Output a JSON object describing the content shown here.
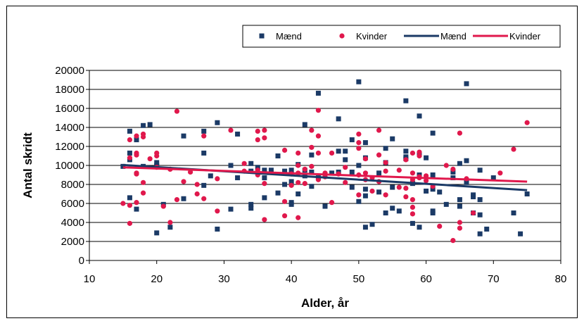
{
  "chart_data": {
    "type": "scatter",
    "xlabel": "Alder, år",
    "ylabel": "Antal skridt",
    "xlim": [
      10,
      80
    ],
    "ylim": [
      0,
      20000
    ],
    "xticks": [
      10,
      20,
      30,
      40,
      50,
      60,
      70,
      80
    ],
    "yticks": [
      0,
      2000,
      4000,
      6000,
      8000,
      10000,
      12000,
      14000,
      16000,
      18000,
      20000
    ],
    "grid": "horizontal",
    "legend_position": "top-right",
    "colors": {
      "maend": "#1b3a66",
      "kvinder": "#e0184c"
    },
    "series": [
      {
        "name": "Mænd",
        "kind": "points",
        "points": [
          [
            15,
            9900
          ],
          [
            16,
            13600
          ],
          [
            16,
            11300
          ],
          [
            16,
            10600
          ],
          [
            16,
            6600
          ],
          [
            17,
            12700
          ],
          [
            17,
            5400
          ],
          [
            18,
            14200
          ],
          [
            18,
            9900
          ],
          [
            19,
            14300
          ],
          [
            20,
            10300
          ],
          [
            20,
            10000
          ],
          [
            20,
            2900
          ],
          [
            21,
            5900
          ],
          [
            22,
            3500
          ],
          [
            24,
            13100
          ],
          [
            24,
            6500
          ],
          [
            27,
            13600
          ],
          [
            27,
            11300
          ],
          [
            27,
            7900
          ],
          [
            28,
            8900
          ],
          [
            29,
            14500
          ],
          [
            29,
            3300
          ],
          [
            31,
            10000
          ],
          [
            31,
            5400
          ],
          [
            32,
            13300
          ],
          [
            32,
            8700
          ],
          [
            34,
            10200
          ],
          [
            34,
            9400
          ],
          [
            34,
            5900
          ],
          [
            34,
            5500
          ],
          [
            35,
            9800
          ],
          [
            36,
            9500
          ],
          [
            36,
            8700
          ],
          [
            36,
            6600
          ],
          [
            37,
            9500
          ],
          [
            38,
            11000
          ],
          [
            38,
            7100
          ],
          [
            39,
            9400
          ],
          [
            39,
            8000
          ],
          [
            40,
            9500
          ],
          [
            40,
            8300
          ],
          [
            40,
            6100
          ],
          [
            40,
            5900
          ],
          [
            41,
            10100
          ],
          [
            41,
            7000
          ],
          [
            42,
            14300
          ],
          [
            42,
            9500
          ],
          [
            42,
            8900
          ],
          [
            43,
            11100
          ],
          [
            43,
            9300
          ],
          [
            43,
            7800
          ],
          [
            44,
            17600
          ],
          [
            44,
            8700
          ],
          [
            45,
            5700
          ],
          [
            46,
            9200
          ],
          [
            47,
            14900
          ],
          [
            47,
            11500
          ],
          [
            47,
            9300
          ],
          [
            48,
            11500
          ],
          [
            48,
            10600
          ],
          [
            49,
            12700
          ],
          [
            49,
            9300
          ],
          [
            49,
            7700
          ],
          [
            50,
            18800
          ],
          [
            50,
            10000
          ],
          [
            50,
            6200
          ],
          [
            51,
            12400
          ],
          [
            51,
            10800
          ],
          [
            51,
            7500
          ],
          [
            51,
            6800
          ],
          [
            51,
            3500
          ],
          [
            52,
            3800
          ],
          [
            53,
            9200
          ],
          [
            53,
            7200
          ],
          [
            54,
            11800
          ],
          [
            54,
            10300
          ],
          [
            54,
            5000
          ],
          [
            55,
            12800
          ],
          [
            55,
            7700
          ],
          [
            55,
            5500
          ],
          [
            56,
            5200
          ],
          [
            57,
            16800
          ],
          [
            57,
            11500
          ],
          [
            57,
            10900
          ],
          [
            57,
            10700
          ],
          [
            58,
            8100
          ],
          [
            58,
            3900
          ],
          [
            59,
            15200
          ],
          [
            59,
            11200
          ],
          [
            59,
            9000
          ],
          [
            59,
            3500
          ],
          [
            60,
            10800
          ],
          [
            60,
            7300
          ],
          [
            61,
            13400
          ],
          [
            61,
            9000
          ],
          [
            61,
            7500
          ],
          [
            61,
            5200
          ],
          [
            61,
            5000
          ],
          [
            62,
            7200
          ],
          [
            63,
            5900
          ],
          [
            64,
            9300
          ],
          [
            64,
            8700
          ],
          [
            65,
            10200
          ],
          [
            65,
            6400
          ],
          [
            65,
            5700
          ],
          [
            66,
            18600
          ],
          [
            66,
            10500
          ],
          [
            66,
            8200
          ],
          [
            67,
            6900
          ],
          [
            67,
            6700
          ],
          [
            67,
            5000
          ],
          [
            68,
            9500
          ],
          [
            68,
            6400
          ],
          [
            68,
            4800
          ],
          [
            68,
            2800
          ],
          [
            69,
            3300
          ],
          [
            70,
            8700
          ],
          [
            73,
            5000
          ],
          [
            74,
            2800
          ],
          [
            75,
            7000
          ]
        ]
      },
      {
        "name": "Kvinder",
        "kind": "points",
        "points": [
          [
            15,
            6000
          ],
          [
            16,
            12700
          ],
          [
            16,
            10800
          ],
          [
            16,
            5800
          ],
          [
            16,
            3900
          ],
          [
            17,
            13100
          ],
          [
            17,
            11300
          ],
          [
            17,
            11100
          ],
          [
            17,
            9200
          ],
          [
            17,
            9100
          ],
          [
            17,
            6100
          ],
          [
            18,
            13300
          ],
          [
            18,
            13000
          ],
          [
            18,
            8200
          ],
          [
            18,
            7100
          ],
          [
            19,
            10700
          ],
          [
            20,
            11300
          ],
          [
            20,
            11000
          ],
          [
            20,
            9800
          ],
          [
            21,
            5700
          ],
          [
            22,
            4000
          ],
          [
            22,
            9600
          ],
          [
            23,
            15700
          ],
          [
            23,
            6400
          ],
          [
            24,
            8300
          ],
          [
            25,
            9300
          ],
          [
            26,
            8000
          ],
          [
            26,
            7000
          ],
          [
            27,
            13100
          ],
          [
            27,
            6500
          ],
          [
            29,
            8600
          ],
          [
            29,
            5200
          ],
          [
            31,
            13700
          ],
          [
            33,
            10200
          ],
          [
            33,
            9400
          ],
          [
            35,
            13600
          ],
          [
            35,
            12700
          ],
          [
            35,
            9500
          ],
          [
            35,
            9000
          ],
          [
            36,
            13700
          ],
          [
            36,
            12900
          ],
          [
            36,
            8100
          ],
          [
            36,
            4300
          ],
          [
            39,
            11600
          ],
          [
            39,
            6200
          ],
          [
            39,
            4700
          ],
          [
            40,
            9100
          ],
          [
            40,
            7900
          ],
          [
            41,
            11300
          ],
          [
            41,
            10000
          ],
          [
            41,
            9200
          ],
          [
            41,
            8200
          ],
          [
            41,
            4500
          ],
          [
            42,
            9600
          ],
          [
            42,
            8100
          ],
          [
            43,
            13700
          ],
          [
            43,
            11900
          ],
          [
            43,
            9900
          ],
          [
            44,
            15800
          ],
          [
            44,
            13100
          ],
          [
            44,
            11300
          ],
          [
            44,
            8500
          ],
          [
            45,
            9200
          ],
          [
            45,
            8800
          ],
          [
            46,
            11300
          ],
          [
            46,
            6100
          ],
          [
            47,
            9100
          ],
          [
            48,
            9800
          ],
          [
            48,
            8200
          ],
          [
            50,
            13300
          ],
          [
            50,
            12400
          ],
          [
            50,
            11800
          ],
          [
            50,
            9000
          ],
          [
            50,
            6900
          ],
          [
            51,
            10700
          ],
          [
            51,
            9200
          ],
          [
            51,
            8500
          ],
          [
            52,
            8700
          ],
          [
            52,
            7300
          ],
          [
            53,
            13700
          ],
          [
            53,
            11100
          ],
          [
            53,
            8300
          ],
          [
            54,
            10300
          ],
          [
            54,
            9400
          ],
          [
            54,
            6900
          ],
          [
            56,
            9500
          ],
          [
            56,
            7700
          ],
          [
            57,
            10600
          ],
          [
            57,
            7600
          ],
          [
            57,
            6700
          ],
          [
            58,
            11300
          ],
          [
            58,
            9200
          ],
          [
            58,
            8500
          ],
          [
            58,
            6400
          ],
          [
            58,
            5600
          ],
          [
            58,
            4900
          ],
          [
            59,
            11400
          ],
          [
            59,
            11000
          ],
          [
            59,
            8800
          ],
          [
            59,
            8700
          ],
          [
            60,
            8900
          ],
          [
            60,
            8400
          ],
          [
            61,
            7800
          ],
          [
            62,
            3600
          ],
          [
            63,
            10000
          ],
          [
            64,
            9600
          ],
          [
            64,
            2100
          ],
          [
            65,
            13400
          ],
          [
            65,
            4000
          ],
          [
            65,
            3400
          ],
          [
            66,
            8600
          ],
          [
            67,
            5000
          ],
          [
            71,
            9200
          ],
          [
            73,
            11700
          ],
          [
            75,
            14500
          ]
        ]
      },
      {
        "name": "Mænd",
        "kind": "trend",
        "points": [
          [
            15,
            10050
          ],
          [
            75,
            7400
          ]
        ]
      },
      {
        "name": "Kvinder",
        "kind": "trend",
        "points": [
          [
            15,
            9800
          ],
          [
            75,
            8300
          ]
        ]
      }
    ]
  }
}
